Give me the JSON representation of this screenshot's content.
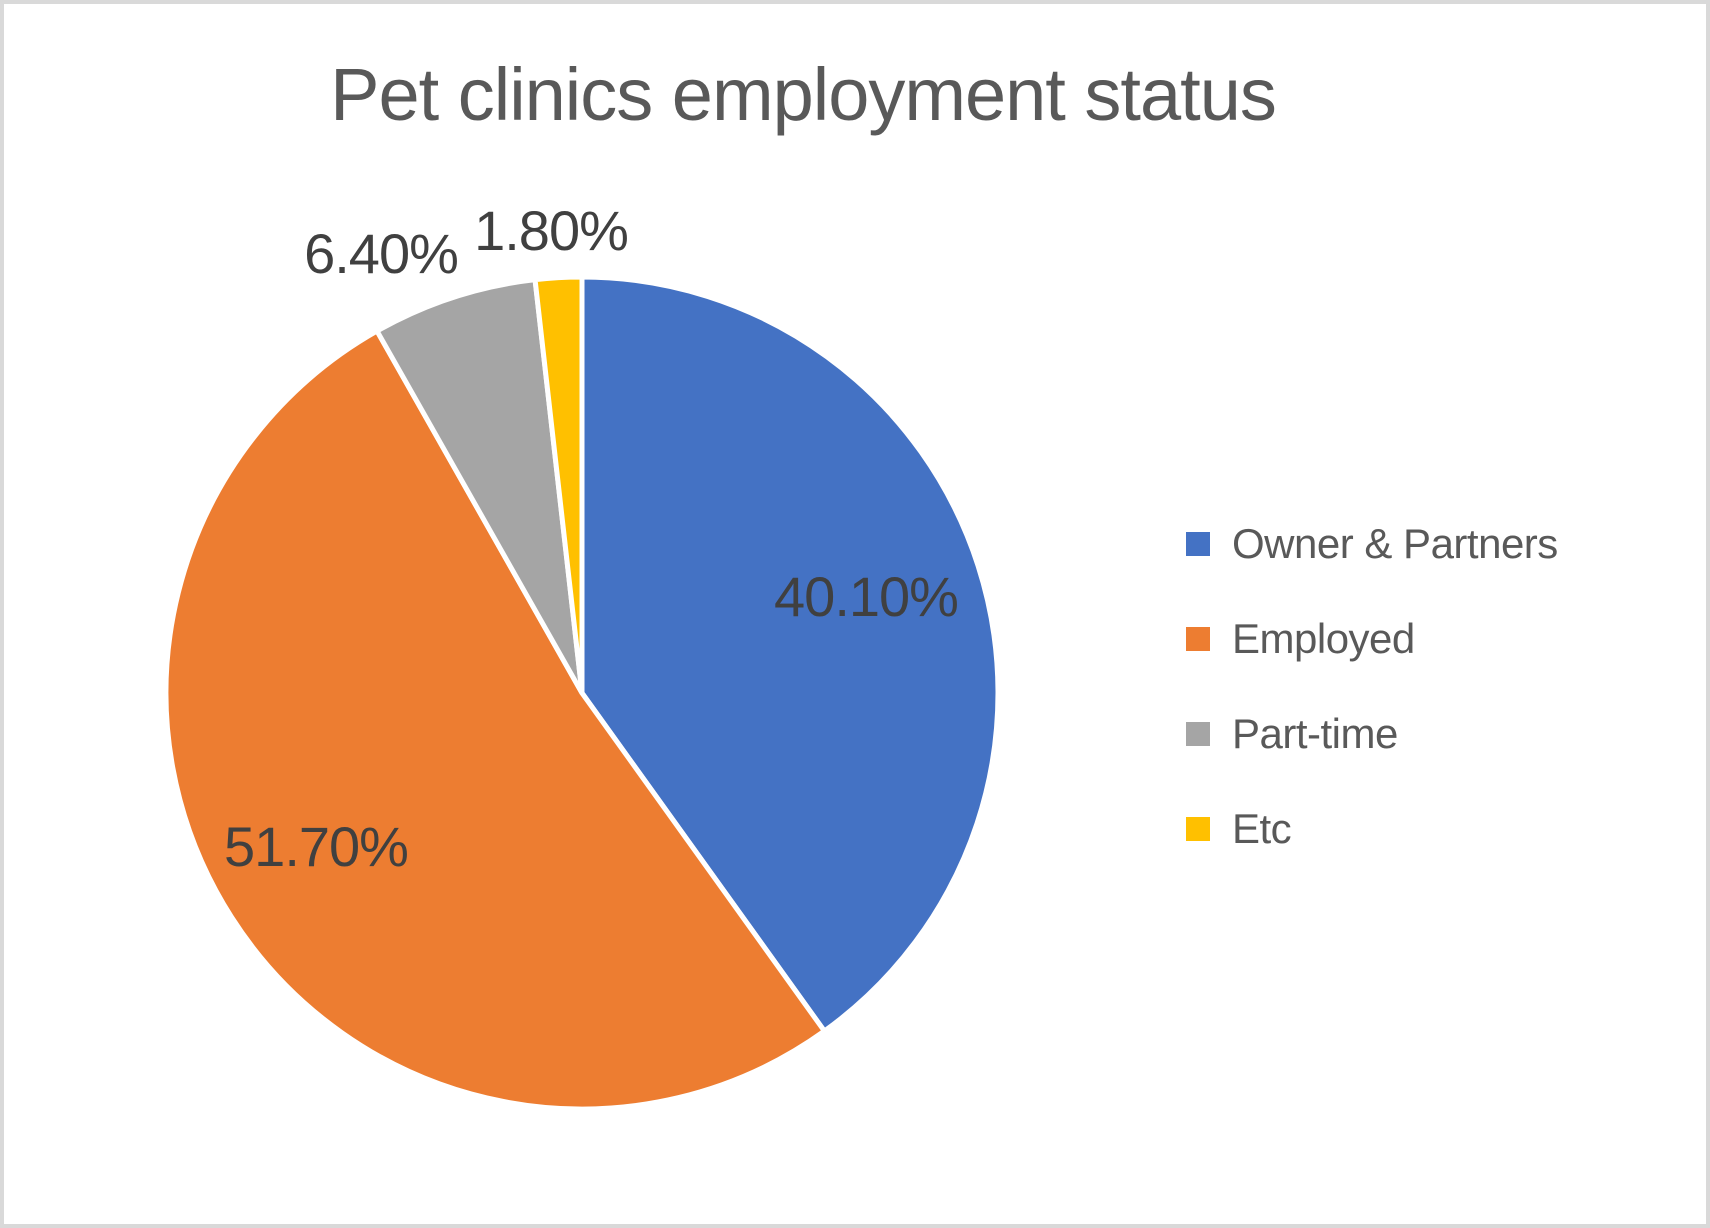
{
  "page": {
    "background_color": "#FFFFFF",
    "border_color": "#D9D9D9"
  },
  "chart_data": {
    "type": "pie",
    "title": "Pet clinics employment status",
    "legend_position": "right",
    "data_label_format": "0.00%",
    "categories": [
      "Owner & Partners",
      "Employed",
      "Part-time",
      "Etc"
    ],
    "values": [
      40.1,
      51.7,
      6.4,
      1.8
    ],
    "slices": [
      {
        "id": "owner-partners",
        "legend_label": "Owner & Partners",
        "value": 40.1,
        "label": "40.10%",
        "color": "#4472C4",
        "label_placement": "inside"
      },
      {
        "id": "employed",
        "legend_label": "Employed",
        "value": 51.7,
        "label": "51.70%",
        "color": "#ED7D31",
        "label_placement": "inside"
      },
      {
        "id": "part-time",
        "legend_label": "Part-time",
        "value": 6.4,
        "label": "6.40%",
        "color": "#A5A5A5",
        "label_placement": "outside"
      },
      {
        "id": "etc",
        "legend_label": "Etc",
        "value": 1.8,
        "label": "1.80%",
        "color": "#FFC000",
        "label_placement": "outside"
      }
    ],
    "title_color": "#595959",
    "data_label_color": "#404040",
    "legend_text_color": "#595959",
    "slice_border_color": "#FFFFFF"
  }
}
